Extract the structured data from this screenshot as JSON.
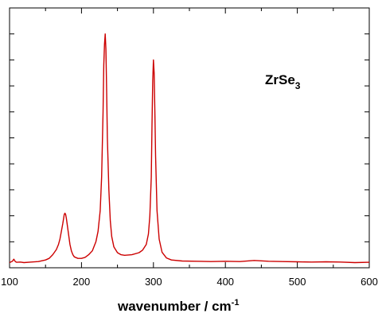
{
  "chart_data": {
    "type": "line",
    "title": "",
    "xlabel": "wavenumber / cm",
    "xlabel_superscript": "-1",
    "ylabel": "",
    "xlim": [
      100,
      600
    ],
    "ylim": [
      0,
      1
    ],
    "x_ticks": [
      100,
      200,
      300,
      400,
      500,
      600
    ],
    "y_ticks": [
      0,
      0.1,
      0.2,
      0.3,
      0.4,
      0.5,
      0.6,
      0.7,
      0.8,
      0.9,
      1.0
    ],
    "y_tick_labels_shown": false,
    "grid": false,
    "legend": "none",
    "line_color": "#cc0000",
    "annotation": {
      "text": "ZrSe",
      "subscript": "3"
    },
    "series": [
      {
        "x": [
          100,
          104,
          106,
          108,
          110,
          115,
          120,
          130,
          140,
          150,
          155,
          160,
          165,
          168,
          170,
          172,
          174,
          176,
          177,
          178,
          179,
          180,
          182,
          184,
          186,
          188,
          190,
          195,
          200,
          205,
          210,
          215,
          220,
          223,
          226,
          228,
          230,
          231,
          232,
          233,
          234,
          235,
          236,
          238,
          240,
          242,
          245,
          250,
          255,
          260,
          270,
          280,
          285,
          290,
          293,
          295,
          297,
          298,
          299,
          300,
          301,
          302,
          303,
          305,
          308,
          312,
          318,
          325,
          340,
          360,
          380,
          400,
          420,
          440,
          460,
          480,
          500,
          520,
          540,
          560,
          580,
          600
        ],
        "y": [
          0.02,
          0.025,
          0.033,
          0.024,
          0.021,
          0.022,
          0.02,
          0.022,
          0.024,
          0.03,
          0.036,
          0.05,
          0.07,
          0.09,
          0.11,
          0.14,
          0.17,
          0.205,
          0.21,
          0.205,
          0.19,
          0.17,
          0.13,
          0.09,
          0.065,
          0.05,
          0.042,
          0.036,
          0.036,
          0.04,
          0.05,
          0.065,
          0.1,
          0.14,
          0.22,
          0.35,
          0.6,
          0.78,
          0.86,
          0.9,
          0.84,
          0.68,
          0.5,
          0.3,
          0.18,
          0.12,
          0.08,
          0.058,
          0.05,
          0.048,
          0.05,
          0.058,
          0.068,
          0.09,
          0.13,
          0.2,
          0.35,
          0.55,
          0.72,
          0.8,
          0.75,
          0.6,
          0.43,
          0.22,
          0.11,
          0.06,
          0.038,
          0.03,
          0.026,
          0.025,
          0.024,
          0.025,
          0.024,
          0.028,
          0.025,
          0.024,
          0.023,
          0.022,
          0.023,
          0.022,
          0.02,
          0.021
        ]
      }
    ]
  }
}
